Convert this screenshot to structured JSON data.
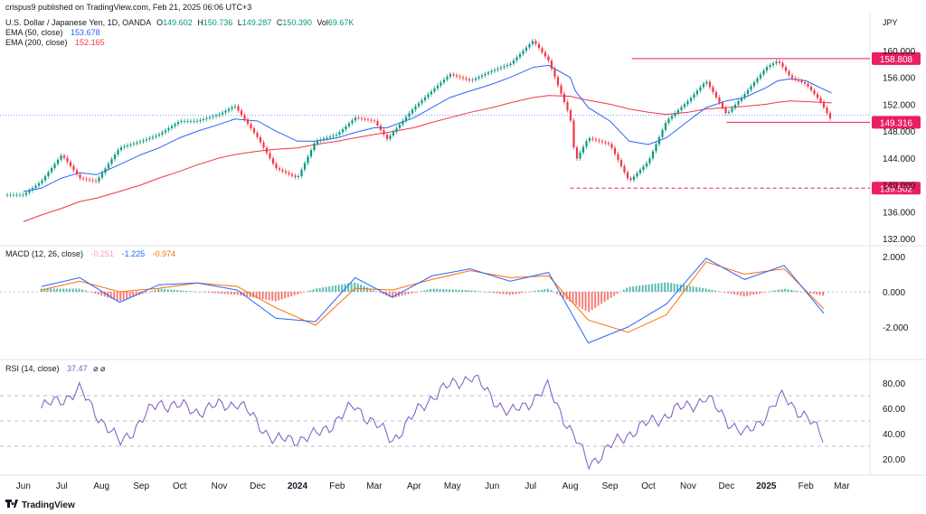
{
  "header": {
    "published": "crispus9 published on TradingView.com, Feb 21, 2025 06:06 UTC+3",
    "currency": "JPY"
  },
  "price_pane": {
    "symbol": "U.S. Dollar / Japanese Yen, 1D, OANDA",
    "ohlc": {
      "o_label": "O",
      "o": "149.602",
      "h_label": "H",
      "h": "150.736",
      "l_label": "L",
      "l": "149.287",
      "c_label": "C",
      "c": "150.390",
      "vol_label": "Vol",
      "vol": "69.67K"
    },
    "ema50": {
      "label": "EMA (50, close)",
      "value": "153.678",
      "color": "#2962ff"
    },
    "ema200": {
      "label": "EMA (200, close)",
      "value": "152.165",
      "color": "#f23645"
    },
    "y_ticks": [
      "160.000",
      "156.000",
      "152.000",
      "148.000",
      "144.000",
      "140.000",
      "136.000",
      "132.000"
    ],
    "level_labels": [
      "158.808",
      "149.316",
      "139.502"
    ],
    "level_color": "#e91e63"
  },
  "macd_pane": {
    "label": "MACD (12, 26, close)",
    "v1": "-0.251",
    "v2": "-1.225",
    "v3": "-0.974",
    "y_ticks": [
      "2.000",
      "0.000",
      "-2.000"
    ]
  },
  "rsi_pane": {
    "label": "RSI (14, close)",
    "value": "37.47",
    "glyphs": "⌀ ⌀",
    "y_ticks": [
      "80.00",
      "60.00",
      "40.00",
      "20.00"
    ]
  },
  "x_axis": {
    "labels": [
      "Jun",
      "Jul",
      "Aug",
      "Sep",
      "Oct",
      "Nov",
      "Dec",
      "2024",
      "Feb",
      "Mar",
      "Apr",
      "May",
      "Jun",
      "Jul",
      "Aug",
      "Sep",
      "Oct",
      "Nov",
      "Dec",
      "2025",
      "Feb",
      "Mar"
    ]
  },
  "footer": {
    "brand": "TradingView"
  },
  "chart_data": {
    "type": "line",
    "title": "U.S. Dollar / Japanese Yen, 1D, OANDA",
    "x": [
      "2023-06-01",
      "2023-06-15",
      "2023-07-01",
      "2023-07-15",
      "2023-07-28",
      "2023-08-15",
      "2023-09-01",
      "2023-09-15",
      "2023-10-01",
      "2023-10-15",
      "2023-11-01",
      "2023-11-13",
      "2023-12-01",
      "2023-12-15",
      "2024-01-01",
      "2024-01-15",
      "2024-02-01",
      "2024-02-15",
      "2024-03-01",
      "2024-03-11",
      "2024-04-01",
      "2024-04-15",
      "2024-04-29",
      "2024-05-15",
      "2024-06-01",
      "2024-06-15",
      "2024-07-03",
      "2024-07-15",
      "2024-08-01",
      "2024-08-05",
      "2024-08-15",
      "2024-09-01",
      "2024-09-16",
      "2024-10-01",
      "2024-10-15",
      "2024-11-01",
      "2024-11-15",
      "2024-12-01",
      "2024-12-15",
      "2025-01-01",
      "2025-01-10",
      "2025-01-20",
      "2025-02-01",
      "2025-02-12",
      "2025-02-21"
    ],
    "series": [
      {
        "name": "USD/JPY close",
        "values": [
          138.5,
          140.5,
          144.5,
          141.0,
          140.5,
          145.5,
          146.5,
          147.5,
          149.5,
          149.5,
          150.5,
          151.8,
          147.0,
          142.5,
          141.0,
          146.5,
          147.5,
          150.0,
          149.5,
          146.8,
          151.5,
          154.0,
          156.5,
          155.5,
          157.0,
          158.0,
          161.5,
          158.5,
          150.0,
          143.5,
          147.0,
          146.0,
          140.5,
          143.5,
          149.5,
          152.5,
          155.5,
          150.5,
          153.5,
          157.5,
          158.5,
          156.0,
          155.0,
          152.5,
          149.5
        ]
      },
      {
        "name": "EMA (50, close)",
        "values": [
          139.0,
          139.5,
          141.0,
          141.8,
          141.5,
          143.0,
          144.5,
          145.5,
          147.0,
          148.0,
          149.0,
          149.8,
          149.5,
          148.0,
          146.5,
          146.5,
          147.0,
          147.8,
          148.5,
          148.5,
          150.0,
          151.5,
          153.0,
          154.0,
          155.0,
          156.0,
          157.5,
          157.8,
          156.0,
          154.0,
          151.5,
          149.5,
          146.5,
          146.0,
          147.0,
          149.5,
          151.5,
          152.5,
          153.0,
          154.5,
          155.5,
          155.8,
          155.5,
          154.5,
          153.7
        ]
      },
      {
        "name": "EMA (200, close)",
        "values": [
          134.5,
          135.5,
          136.5,
          137.5,
          138.0,
          139.0,
          140.0,
          141.0,
          142.0,
          143.0,
          144.0,
          144.5,
          145.0,
          145.3,
          145.5,
          146.0,
          146.5,
          147.0,
          147.5,
          147.8,
          148.5,
          149.3,
          150.0,
          150.8,
          151.5,
          152.2,
          153.0,
          153.3,
          153.2,
          153.0,
          152.6,
          152.0,
          151.3,
          150.8,
          150.5,
          150.8,
          151.3,
          151.5,
          151.7,
          152.0,
          152.3,
          152.5,
          152.4,
          152.3,
          152.2
        ]
      }
    ],
    "horizontal_levels": [
      158.808,
      149.316,
      139.502
    ],
    "ylim": [
      132,
      162
    ],
    "last_close": 150.39,
    "macd": {
      "x": [
        "2023-06",
        "2023-07",
        "2023-08",
        "2023-09",
        "2023-10",
        "2023-11",
        "2023-12",
        "2024-01",
        "2024-02",
        "2024-03",
        "2024-04",
        "2024-05",
        "2024-06",
        "2024-07",
        "2024-08",
        "2024-09",
        "2024-10",
        "2024-11",
        "2024-12",
        "2025-01",
        "2025-02"
      ],
      "macd_values": [
        0.3,
        0.8,
        -0.6,
        0.4,
        0.5,
        0.1,
        -1.5,
        -1.7,
        0.8,
        -0.3,
        0.9,
        1.3,
        0.6,
        1.1,
        -2.9,
        -2.0,
        -0.7,
        1.9,
        0.7,
        1.5,
        -1.225
      ],
      "signal_values": [
        0.1,
        0.6,
        0.0,
        0.2,
        0.5,
        0.3,
        -0.9,
        -1.9,
        0.2,
        0.1,
        0.7,
        1.2,
        0.8,
        0.9,
        -1.6,
        -2.3,
        -1.3,
        1.7,
        1.0,
        1.3,
        -0.974
      ],
      "ylim": [
        -3.2,
        2.3
      ]
    },
    "rsi": {
      "x": [
        "2023-06",
        "2023-07",
        "2023-08",
        "2023-09",
        "2023-10",
        "2023-11",
        "2023-12",
        "2024-01",
        "2024-02",
        "2024-03",
        "2024-04",
        "2024-05",
        "2024-06",
        "2024-07",
        "2024-08",
        "2024-09",
        "2024-10",
        "2024-11",
        "2024-12",
        "2025-01",
        "2025-02"
      ],
      "values": [
        60,
        74,
        32,
        65,
        58,
        65,
        34,
        38,
        62,
        35,
        70,
        86,
        55,
        76,
        16,
        40,
        55,
        68,
        38,
        70,
        37.47
      ],
      "levels": [
        70,
        50,
        30
      ],
      "ylim": [
        12,
        92
      ]
    }
  }
}
